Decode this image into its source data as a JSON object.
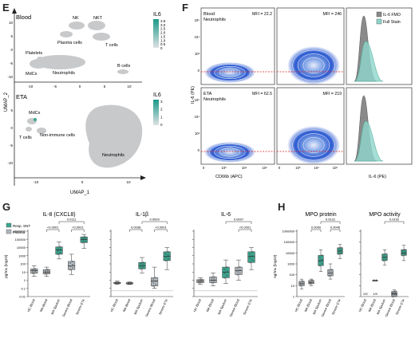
{
  "panels": {
    "E": {
      "letter": "E",
      "top": {
        "tissue": "Blood",
        "colorbar_title": "IL6",
        "colorbar_ticks": [
          "3.5",
          "3.0",
          "2.5",
          "2.0",
          "1.5",
          "1.0",
          "0.5",
          "0"
        ],
        "x_ticks": [
          "-10",
          "-5",
          "0",
          "5",
          "10"
        ],
        "y_ticks": [
          "10",
          "5",
          "0",
          "-5",
          "-10"
        ],
        "labels": [
          "NK",
          "NKT",
          "Plasma cells",
          "T cells",
          "Platelets",
          "MdCs",
          "Neutrophils",
          "B cells"
        ]
      },
      "bottom": {
        "tissue": "ETA",
        "colorbar_title": "IL6",
        "colorbar_ticks": [
          "3",
          "2",
          "1",
          "0"
        ],
        "x_ticks": [
          "-10",
          "0",
          "10"
        ],
        "y_ticks": [
          "5",
          "0",
          "-5",
          "-10"
        ],
        "labels": [
          "MdCs",
          "T cells",
          "Non-immune cells",
          "Neutrophils"
        ]
      },
      "xlabel": "UMAP_1",
      "ylabel": "UMAP_2"
    },
    "F": {
      "letter": "F",
      "rows": [
        {
          "title1": "Blood",
          "title2": "Neutrophils",
          "mfi_left": "MFI = 22.2",
          "mfi_right": "MFI = 246"
        },
        {
          "title1": "ETA",
          "title2": "Neutrophils",
          "mfi_left": "MFI = 62.5",
          "mfi_right": "MFI = 219"
        }
      ],
      "y_ticks": [
        "10⁵",
        "10⁴",
        "10³",
        "0"
      ],
      "x_ticks": [
        "0",
        "10³",
        "10⁴",
        "10⁵"
      ],
      "ylabel": "IL-6 (PE)",
      "xlabel": "CD66b (APC)",
      "hist_xlabel": "IL-6 (PE)",
      "legend": [
        {
          "label": "IL-6 FMO",
          "color": "#8a8a8a"
        },
        {
          "label": "Full Stain",
          "color": "#8fd6cc"
        }
      ]
    },
    "G": {
      "letter": "G",
      "legend": [
        {
          "label": "Resp. SNT",
          "color": "#3aa68f"
        },
        {
          "label": "Plasma",
          "color": "#aeb6bd"
        }
      ],
      "ylabel": "pg/mL (log10)",
      "y_ticks": [
        "1000000",
        "100000",
        "10000",
        "1000",
        "100",
        "10",
        "1",
        "0.1",
        "0.01"
      ],
      "categories": [
        "HC Blood",
        "MA Blood",
        "MA Sputum",
        "Severe Blood",
        "Severe ETA"
      ],
      "charts": [
        {
          "title": "IL-8 (CXCL8)",
          "brackets": [
            {
              "from": 1,
              "to": 2,
              "label": "<0.0001"
            },
            {
              "from": 3,
              "to": 4,
              "label": "<0.0001"
            },
            {
              "from": 2,
              "to": 4,
              "label": "0.0111"
            }
          ]
        },
        {
          "title": "IL-1β",
          "brackets": [
            {
              "from": 1,
              "to": 2,
              "label": "0.0038"
            },
            {
              "from": 3,
              "to": 4,
              "label": "<0.0001"
            },
            {
              "from": 2,
              "to": 4,
              "label": "0.0009"
            }
          ]
        },
        {
          "title": "IL-6",
          "brackets": [
            {
              "from": 3,
              "to": 4,
              "label": "<0.0001"
            },
            {
              "from": 2,
              "to": 4,
              "label": "0.0007"
            }
          ]
        }
      ]
    },
    "H": {
      "letter": "H",
      "ylabel": "ng/mL (log10)",
      "y_ticks": [
        "1000000",
        "100000",
        "10000",
        "1000",
        "100",
        "10",
        "1"
      ],
      "categories": [
        "HC Blood",
        "MA Blood",
        "MA Sputum",
        "Severe Blood",
        "Severe ETA"
      ],
      "charts": [
        {
          "title": "MPO protein",
          "brackets": [
            {
              "from": 1,
              "to": 2,
              "label": "0.0050"
            },
            {
              "from": 3,
              "to": 4,
              "label": "0.0046"
            },
            {
              "from": 2,
              "to": 4,
              "label": "0.0131"
            }
          ],
          "notes": []
        },
        {
          "title": "MPO activity",
          "brackets": [
            {
              "from": 2,
              "to": 4,
              "label": "0.0192"
            }
          ],
          "notes": [
            {
              "cat": 0,
              "text": "0/2"
            },
            {
              "cat": 1,
              "text": "1/9"
            },
            {
              "cat": 3,
              "text": "3/16"
            }
          ]
        }
      ]
    }
  },
  "chart_data": [
    {
      "type": "box",
      "title": "IL-8 (CXCL8)",
      "ylabel": "pg/mL (log10)",
      "log": true,
      "ylim": [
        0.01,
        1000000
      ],
      "categories": [
        "HC Blood",
        "MA Blood",
        "MA Sputum",
        "Severe Blood",
        "Severe ETA"
      ],
      "series": [
        {
          "name": "Plasma",
          "cats": [
            0,
            1,
            3
          ]
        },
        {
          "name": "Resp. SNT",
          "cats": [
            2,
            4
          ]
        }
      ],
      "boxes": [
        {
          "min": 3,
          "q1": 7,
          "median": 15,
          "q3": 25,
          "max": 60
        },
        {
          "min": 3,
          "q1": 6,
          "median": 10,
          "q3": 20,
          "max": 40
        },
        {
          "min": 400,
          "q1": 1500,
          "median": 5000,
          "q3": 12000,
          "max": 50000
        },
        {
          "min": 5,
          "q1": 20,
          "median": 60,
          "q3": 200,
          "max": 1500
        },
        {
          "min": 8000,
          "q1": 40000,
          "median": 100000,
          "q3": 200000,
          "max": 400000
        }
      ]
    },
    {
      "type": "box",
      "title": "IL-1β",
      "ylabel": "pg/mL (log10)",
      "log": true,
      "ylim": [
        0.01,
        1000000
      ],
      "categories": [
        "HC Blood",
        "MA Blood",
        "MA Sputum",
        "Severe Blood",
        "Severe ETA"
      ],
      "series": [
        {
          "name": "Plasma",
          "cats": [
            0,
            1,
            3
          ]
        },
        {
          "name": "Resp. SNT",
          "cats": [
            2,
            4
          ]
        }
      ],
      "boxes": [
        {
          "min": 0.3,
          "q1": 0.4,
          "median": 0.45,
          "q3": 0.55,
          "max": 0.8
        },
        {
          "min": 0.3,
          "q1": 0.35,
          "median": 0.45,
          "q3": 0.5,
          "max": 0.6
        },
        {
          "min": 8,
          "q1": 25,
          "median": 60,
          "q3": 150,
          "max": 600
        },
        {
          "min": 0.1,
          "q1": 0.2,
          "median": 0.8,
          "q3": 2,
          "max": 40
        },
        {
          "min": 20,
          "q1": 250,
          "median": 800,
          "q3": 3000,
          "max": 10000
        }
      ]
    },
    {
      "type": "box",
      "title": "IL-6",
      "ylabel": "pg/mL (log10)",
      "log": true,
      "ylim": [
        0.01,
        1000000
      ],
      "categories": [
        "HC Blood",
        "MA Blood",
        "MA Sputum",
        "Severe Blood",
        "Severe ETA"
      ],
      "series": [
        {
          "name": "Plasma",
          "cats": [
            0,
            1,
            3
          ]
        },
        {
          "name": "Resp. SNT",
          "cats": [
            2,
            4
          ]
        }
      ],
      "boxes": [
        {
          "min": 0.3,
          "q1": 0.5,
          "median": 0.8,
          "q3": 1.2,
          "max": 2
        },
        {
          "min": 0.2,
          "q1": 0.5,
          "median": 1,
          "q3": 2.5,
          "max": 8
        },
        {
          "min": 0.4,
          "q1": 2,
          "median": 10,
          "q3": 40,
          "max": 300
        },
        {
          "min": 1,
          "q1": 5,
          "median": 15,
          "q3": 40,
          "max": 300
        },
        {
          "min": 20,
          "q1": 150,
          "median": 800,
          "q3": 3000,
          "max": 10000
        }
      ]
    },
    {
      "type": "box",
      "title": "MPO protein",
      "ylabel": "ng/mL (log10)",
      "log": true,
      "ylim": [
        1,
        1000000
      ],
      "categories": [
        "HC Blood",
        "MA Blood",
        "MA Sputum",
        "Severe Blood",
        "Severe ETA"
      ],
      "series": [
        {
          "name": "Plasma",
          "cats": [
            0,
            1,
            3
          ]
        },
        {
          "name": "Resp. SNT",
          "cats": [
            2,
            4
          ]
        }
      ],
      "boxes": [
        {
          "min": 5,
          "q1": 10,
          "median": 15,
          "q3": 25,
          "max": 40
        },
        {
          "min": 10,
          "q1": 15,
          "median": 20,
          "q3": 30,
          "max": 40
        },
        {
          "min": 200,
          "q1": 700,
          "median": 2000,
          "q3": 6000,
          "max": 20000
        },
        {
          "min": 40,
          "q1": 80,
          "median": 150,
          "q3": 300,
          "max": 1000
        },
        {
          "min": 3000,
          "q1": 8000,
          "median": 15000,
          "q3": 30000,
          "max": 60000
        }
      ]
    },
    {
      "type": "box",
      "title": "MPO activity",
      "ylabel": "ng/mL (log10)",
      "log": true,
      "ylim": [
        1,
        1000000
      ],
      "categories": [
        "HC Blood",
        "MA Blood",
        "MA Sputum",
        "Severe Blood",
        "Severe ETA"
      ],
      "series": [
        {
          "name": "Plasma",
          "cats": [
            0,
            1,
            3
          ]
        },
        {
          "name": "Resp. SNT",
          "cats": [
            2,
            4
          ]
        }
      ],
      "boxes": [
        null,
        {
          "min": 30,
          "q1": 30,
          "median": 30,
          "q3": 30,
          "max": 30
        },
        {
          "min": 800,
          "q1": 2000,
          "median": 4000,
          "q3": 8000,
          "max": 20000
        },
        {
          "min": 1,
          "q1": 1,
          "median": 2,
          "q3": 3,
          "max": 4
        },
        {
          "min": 2000,
          "q1": 6000,
          "median": 10000,
          "q3": 20000,
          "max": 50000
        }
      ]
    }
  ]
}
